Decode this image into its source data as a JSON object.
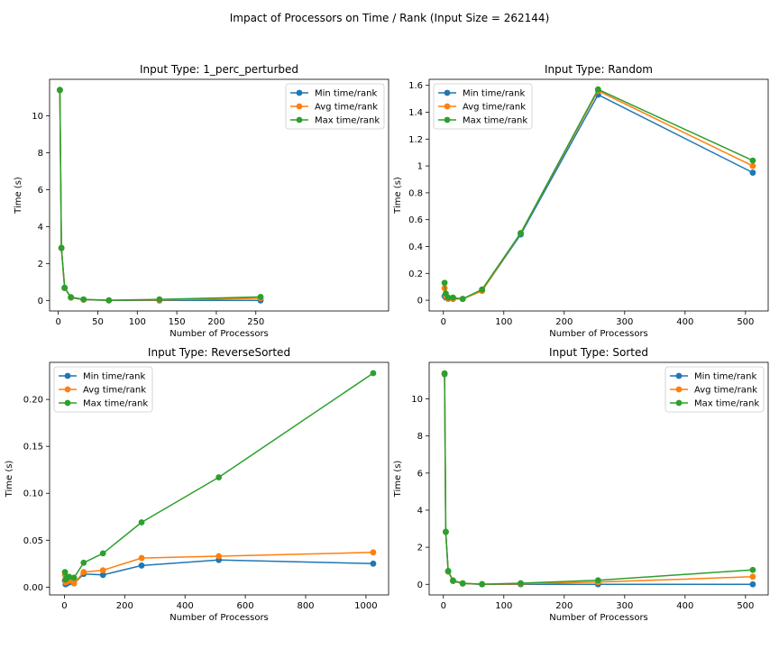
{
  "suptitle": "Impact of Processors on Time / Rank (Input Size = 262144)",
  "colors": {
    "min": "#1f77b4",
    "avg": "#ff7f0e",
    "max": "#2ca02c"
  },
  "chart_data": [
    {
      "type": "line",
      "title": "Input Type: 1_perc_perturbed",
      "xlabel": "Number of Processors",
      "ylabel": "Time (s)",
      "xlim": [
        -11,
        418
      ],
      "ylim": [
        -0.57,
        11.97
      ],
      "xticks": [
        0,
        50,
        100,
        150,
        200,
        250
      ],
      "yticks": [
        0,
        2,
        4,
        6,
        8,
        10
      ],
      "legend_position": "top-right",
      "x": [
        2,
        4,
        8,
        16,
        32,
        64,
        128,
        256
      ],
      "series": [
        {
          "name": "Min time/rank",
          "key": "min",
          "values": [
            11.38,
            2.83,
            0.67,
            0.15,
            0.04,
            0.0,
            0.0,
            0.0
          ]
        },
        {
          "name": "Avg time/rank",
          "key": "avg",
          "values": [
            11.39,
            2.84,
            0.68,
            0.16,
            0.05,
            0.01,
            0.03,
            0.12
          ]
        },
        {
          "name": "Max time/rank",
          "key": "max",
          "values": [
            11.4,
            2.85,
            0.69,
            0.18,
            0.06,
            0.01,
            0.06,
            0.19
          ]
        }
      ]
    },
    {
      "type": "line",
      "title": "Input Type: Random",
      "xlabel": "Number of Processors",
      "ylabel": "Time (s)",
      "xlim": [
        -23.5,
        537.5
      ],
      "ylim": [
        -0.08,
        1.645
      ],
      "xticks": [
        0,
        100,
        200,
        300,
        400,
        500
      ],
      "yticks": [
        0.0,
        0.2,
        0.4,
        0.6,
        0.8,
        1.0,
        1.2,
        1.4,
        1.6
      ],
      "legend_position": "top-left",
      "x": [
        2,
        4,
        8,
        16,
        32,
        64,
        128,
        256,
        512
      ],
      "series": [
        {
          "name": "Min time/rank",
          "key": "min",
          "values": [
            0.03,
            0.02,
            0.01,
            0.01,
            0.01,
            0.07,
            0.49,
            1.53,
            0.95
          ]
        },
        {
          "name": "Avg time/rank",
          "key": "avg",
          "values": [
            0.09,
            0.03,
            0.01,
            0.01,
            0.01,
            0.07,
            0.5,
            1.56,
            1.0
          ]
        },
        {
          "name": "Max time/rank",
          "key": "max",
          "values": [
            0.13,
            0.05,
            0.02,
            0.02,
            0.01,
            0.08,
            0.5,
            1.57,
            1.04
          ]
        }
      ]
    },
    {
      "type": "line",
      "title": "Input Type: ReverseSorted",
      "xlabel": "Number of Processors",
      "ylabel": "Time (s)",
      "xlim": [
        -49,
        1075
      ],
      "ylim": [
        -0.0083,
        0.2395
      ],
      "xticks": [
        0,
        200,
        400,
        600,
        800,
        1000
      ],
      "yticks": [
        "0.00",
        "0.05",
        "0.10",
        "0.15",
        "0.20"
      ],
      "legend_position": "top-left",
      "x": [
        2,
        4,
        8,
        16,
        32,
        64,
        128,
        256,
        512,
        1024
      ],
      "series": [
        {
          "name": "Min time/rank",
          "key": "min",
          "values": [
            0.007,
            0.003,
            0.004,
            0.005,
            0.004,
            0.014,
            0.013,
            0.023,
            0.029,
            0.025
          ]
        },
        {
          "name": "Avg time/rank",
          "key": "avg",
          "values": [
            0.013,
            0.005,
            0.006,
            0.007,
            0.004,
            0.016,
            0.018,
            0.031,
            0.033,
            0.037
          ]
        },
        {
          "name": "Max time/rank",
          "key": "max",
          "values": [
            0.016,
            0.008,
            0.01,
            0.011,
            0.01,
            0.026,
            0.036,
            0.069,
            0.117,
            0.228
          ]
        }
      ]
    },
    {
      "type": "line",
      "title": "Input Type: Sorted",
      "xlabel": "Number of Processors",
      "ylabel": "Time (s)",
      "xlim": [
        -23.5,
        537.5
      ],
      "ylim": [
        -0.57,
        11.97
      ],
      "xticks": [
        0,
        100,
        200,
        300,
        400,
        500
      ],
      "yticks": [
        0,
        2,
        4,
        6,
        8,
        10
      ],
      "legend_position": "top-right",
      "x": [
        2,
        4,
        8,
        16,
        32,
        64,
        128,
        256,
        512
      ],
      "series": [
        {
          "name": "Min time/rank",
          "key": "min",
          "values": [
            11.33,
            2.82,
            0.69,
            0.18,
            0.04,
            0.0,
            0.0,
            0.0,
            0.0
          ]
        },
        {
          "name": "Avg time/rank",
          "key": "avg",
          "values": [
            11.36,
            2.83,
            0.7,
            0.19,
            0.05,
            0.01,
            0.03,
            0.12,
            0.41
          ]
        },
        {
          "name": "Max time/rank",
          "key": "max",
          "values": [
            11.38,
            2.84,
            0.72,
            0.21,
            0.06,
            0.01,
            0.06,
            0.22,
            0.78
          ]
        }
      ]
    }
  ]
}
